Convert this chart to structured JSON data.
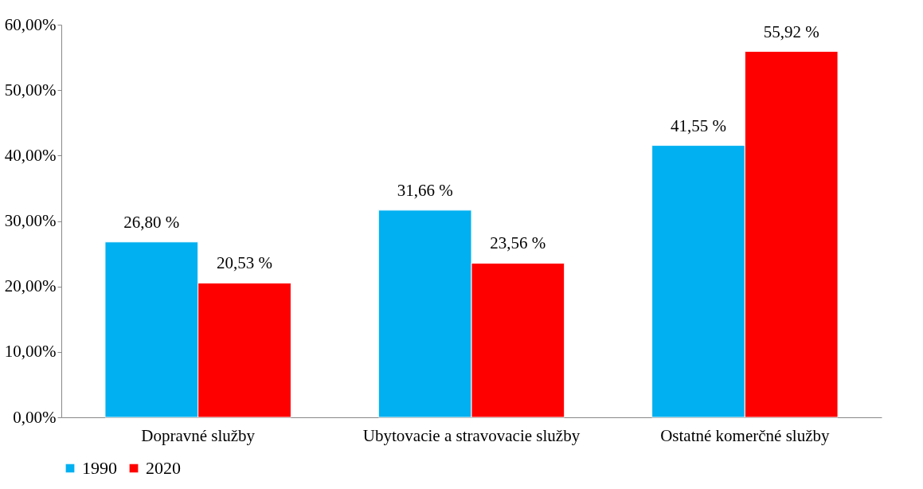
{
  "chart_data": {
    "type": "bar",
    "categories": [
      "Dopravné služby",
      "Ubytovacie a stravovacie služby",
      "Ostatné komerčné služby"
    ],
    "series": [
      {
        "name": "1990",
        "color": "#00b0f0",
        "values": [
          26.8,
          31.66,
          41.55
        ],
        "value_labels": [
          "26,80 %",
          "31,66 %",
          "41,55 %"
        ]
      },
      {
        "name": "2020",
        "color": "#ff0000",
        "values": [
          20.53,
          23.56,
          55.92
        ],
        "value_labels": [
          "20,53 %",
          "23,56 %",
          "55,92 %"
        ]
      }
    ],
    "ylim": [
      0,
      60
    ],
    "yticks": [
      {
        "value": 0,
        "label": "0,00%"
      },
      {
        "value": 10,
        "label": "10,00%"
      },
      {
        "value": 20,
        "label": "20,00%"
      },
      {
        "value": 30,
        "label": "30,00%"
      },
      {
        "value": 40,
        "label": "40,00%"
      },
      {
        "value": 50,
        "label": "50,00%"
      },
      {
        "value": 60,
        "label": "60,00%"
      }
    ],
    "grid": false,
    "legend": "bottom"
  }
}
